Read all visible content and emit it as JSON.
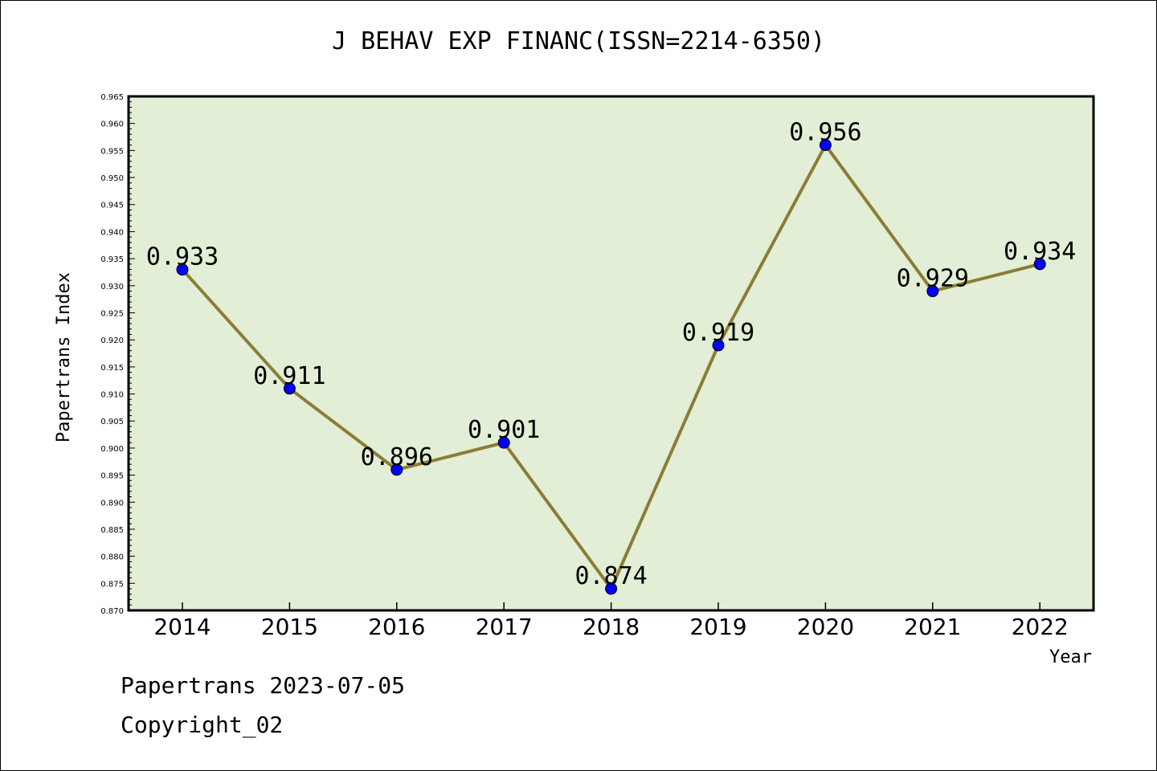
{
  "title": "J BEHAV EXP FINANC(ISSN=2214-6350)",
  "footer": {
    "line1": "Papertrans 2023-07-05",
    "line2": "Copyright_02"
  },
  "chart_data": {
    "type": "line",
    "title": "J BEHAV EXP FINANC(ISSN=2214-6350)",
    "xlabel": "Year",
    "ylabel": "Papertrans Index",
    "categories": [
      "2014",
      "2015",
      "2016",
      "2017",
      "2018",
      "2019",
      "2020",
      "2021",
      "2022"
    ],
    "values": [
      0.933,
      0.911,
      0.896,
      0.901,
      0.874,
      0.919,
      0.956,
      0.929,
      0.934
    ],
    "data_labels": [
      "0.933",
      "0.911",
      "0.896",
      "0.901",
      "0.874",
      "0.919",
      "0.956",
      "0.929",
      "0.934"
    ],
    "ylim": [
      0.87,
      0.965
    ],
    "yticks": [
      "0.870",
      "0.875",
      "0.880",
      "0.885",
      "0.890",
      "0.895",
      "0.900",
      "0.905",
      "0.910",
      "0.915",
      "0.920",
      "0.925",
      "0.930",
      "0.935",
      "0.940",
      "0.945",
      "0.950",
      "0.955",
      "0.960",
      "0.965"
    ],
    "grid": false,
    "colors": {
      "plot_background": "#e2efd6",
      "line": "#8b7d35",
      "marker": "#0000ff"
    }
  }
}
